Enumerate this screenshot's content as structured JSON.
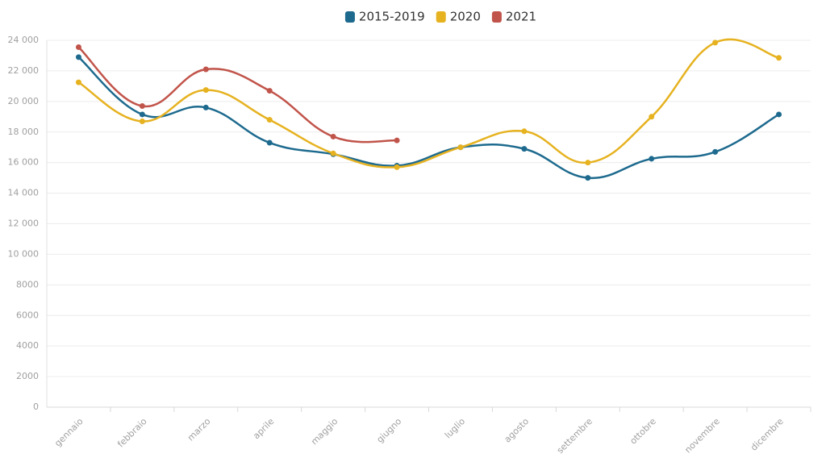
{
  "chart_data": {
    "type": "line",
    "categories": [
      "gennaio",
      "febbraio",
      "marzo",
      "aprile",
      "maggio",
      "giugno",
      "luglio",
      "agosto",
      "settembre",
      "ottobre",
      "novembre",
      "dicembre"
    ],
    "series": [
      {
        "name": "2015-2019",
        "color": "#1d6a8e",
        "values": [
          22900,
          19150,
          19600,
          17300,
          16550,
          15800,
          17000,
          16900,
          15000,
          16250,
          16700,
          19150
        ]
      },
      {
        "name": "2020",
        "color": "#e6b220",
        "values": [
          21250,
          18700,
          20750,
          18800,
          16600,
          15700,
          17000,
          18050,
          16000,
          19000,
          23850,
          22850
        ]
      },
      {
        "name": "2021",
        "color": "#c1544a",
        "values": [
          23550,
          19700,
          22100,
          20700,
          17700,
          17450,
          null,
          null,
          null,
          null,
          null,
          null
        ]
      }
    ],
    "ylim": [
      0,
      24000
    ],
    "yticks": [
      0,
      2000,
      4000,
      6000,
      8000,
      {
        "value": 10000,
        "label": "10 000"
      },
      {
        "value": 12000,
        "label": "12 000"
      },
      {
        "value": 14000,
        "label": "14 000"
      },
      {
        "value": 16000,
        "label": "16 000"
      },
      {
        "value": 18000,
        "label": "18 000"
      },
      {
        "value": 20000,
        "label": "20 000"
      },
      {
        "value": 22000,
        "label": "22 000"
      },
      {
        "value": 24000,
        "label": "24 000"
      }
    ],
    "grid": true,
    "legend": "top"
  }
}
